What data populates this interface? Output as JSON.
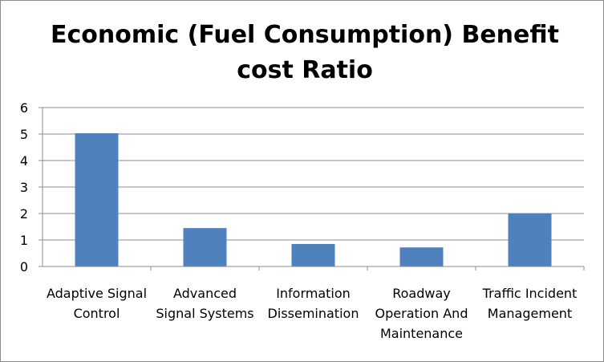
{
  "chart_data": {
    "type": "bar",
    "title": "Economic (Fuel Consumption) Benefit cost Ratio",
    "title_lines": [
      "Economic (Fuel Consumption) Benefit",
      "cost Ratio"
    ],
    "categories": [
      "Adaptive Signal Control",
      "Advanced Signal Systems",
      "Information Dissemination",
      "Roadway Operation And Maintenance",
      "Traffic Incident Management"
    ],
    "category_lines": [
      [
        "Adaptive Signal",
        "Control"
      ],
      [
        "Advanced",
        "Signal Systems"
      ],
      [
        "Information",
        "Dissemination"
      ],
      [
        "Roadway",
        "Operation And",
        "Maintenance"
      ],
      [
        "Traffic Incident",
        "Management"
      ]
    ],
    "values": [
      5.03,
      1.45,
      0.85,
      0.72,
      2.0
    ],
    "ylim": [
      0,
      6
    ],
    "yticks": [
      0,
      1,
      2,
      3,
      4,
      5,
      6
    ],
    "grid": true,
    "legend": "none",
    "xlabel": "",
    "ylabel": "",
    "colors": {
      "bar": "#4f81bd",
      "grid": "#8c8c8c",
      "axis": "#8c8c8c"
    }
  }
}
